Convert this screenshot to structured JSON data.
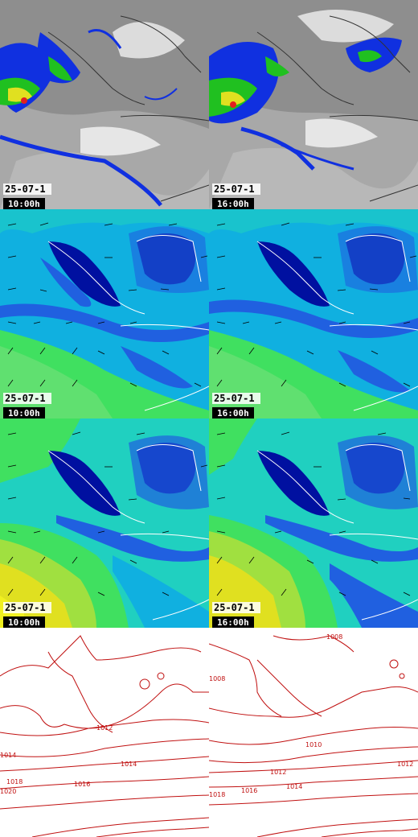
{
  "panels": [
    {
      "row": "rain",
      "date": "25-07-1",
      "time": "10:00h"
    },
    {
      "row": "rain",
      "date": "25-07-1",
      "time": "16:00h"
    },
    {
      "row": "wind_low",
      "date": "25-07-1",
      "time": "10:00h"
    },
    {
      "row": "wind_low",
      "date": "25-07-1",
      "time": "16:00h"
    },
    {
      "row": "wind_high",
      "date": "25-07-1",
      "time": "10:00h"
    },
    {
      "row": "wind_high",
      "date": "25-07-1",
      "time": "16:00h"
    },
    {
      "row": "pressure",
      "date": "",
      "time": ""
    },
    {
      "row": "pressure",
      "date": "",
      "time": ""
    }
  ],
  "pressure_labels": {
    "left": [
      "1012",
      "1014",
      "1016",
      "1018",
      "1014",
      "1020"
    ],
    "right": [
      "1008",
      "1008",
      "1010",
      "1012",
      "1012",
      "1014",
      "1016",
      "1018"
    ]
  },
  "colors": {
    "rain_cloud": "#9a9a9a",
    "rain_low": "#1030e0",
    "rain_mid": "#20c020",
    "rain_high": "#e0e020",
    "rain_peak": "#e02020",
    "wind_dark": "#0010a0",
    "wind_blue": "#2060e0",
    "wind_cyan": "#10b0e0",
    "wind_teal": "#20d0c0",
    "wind_green": "#40e060",
    "wind_yellow": "#e0e020",
    "isobar": "#c01010",
    "coast": "#ffffff"
  }
}
